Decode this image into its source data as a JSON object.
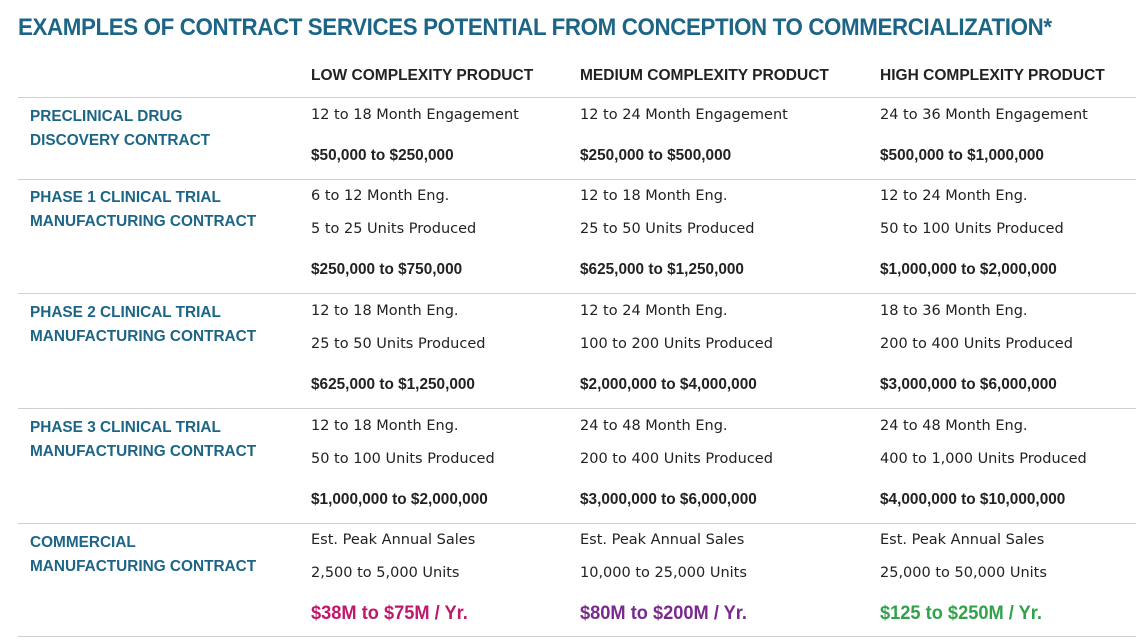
{
  "title": "EXAMPLES OF CONTRACT SERVICES POTENTIAL FROM CONCEPTION TO COMMERCIALIZATION*",
  "columns": [
    "LOW COMPLEXITY PRODUCT",
    "MEDIUM COMPLEXITY PRODUCT",
    "HIGH COMPLEXITY PRODUCT"
  ],
  "colors": {
    "heading": "#1d6586",
    "commercial_low": "#c0186a",
    "commercial_medium": "#7a2a8c",
    "commercial_high": "#30a24a"
  },
  "rows": [
    {
      "label": [
        "PRECLINICAL DRUG",
        "DISCOVERY CONTRACT"
      ],
      "cells": [
        {
          "engagement": "12 to 18 Month Engagement",
          "amount": "$50,000 to $250,000"
        },
        {
          "engagement": "12 to 24 Month Engagement",
          "amount": "$250,000 to $500,000"
        },
        {
          "engagement": "24 to 36 Month Engagement",
          "amount": "$500,000 to $1,000,000"
        }
      ]
    },
    {
      "label": [
        "PHASE 1 CLINICAL TRIAL",
        "MANUFACTURING CONTRACT"
      ],
      "cells": [
        {
          "engagement": "6 to 12 Month Eng.",
          "units": "5 to 25 Units Produced",
          "amount": "$250,000 to $750,000"
        },
        {
          "engagement": "12 to 18 Month Eng.",
          "units": "25 to 50 Units Produced",
          "amount": "$625,000 to $1,250,000"
        },
        {
          "engagement": "12 to 24 Month Eng.",
          "units": "50 to 100 Units Produced",
          "amount": "$1,000,000 to $2,000,000"
        }
      ]
    },
    {
      "label": [
        "PHASE 2 CLINICAL TRIAL",
        "MANUFACTURING CONTRACT"
      ],
      "cells": [
        {
          "engagement": "12 to 18 Month Eng.",
          "units": "25 to 50 Units Produced",
          "amount": "$625,000 to $1,250,000"
        },
        {
          "engagement": "12 to 24 Month Eng.",
          "units": "100 to 200 Units Produced",
          "amount": "$2,000,000 to $4,000,000"
        },
        {
          "engagement": "18 to 36 Month Eng.",
          "units": "200 to 400 Units Produced",
          "amount": "$3,000,000 to $6,000,000"
        }
      ]
    },
    {
      "label": [
        "PHASE 3 CLINICAL TRIAL",
        "MANUFACTURING CONTRACT"
      ],
      "cells": [
        {
          "engagement": "12 to 18 Month Eng.",
          "units": "50 to 100 Units Produced",
          "amount": "$1,000,000 to $2,000,000"
        },
        {
          "engagement": "24 to 48 Month Eng.",
          "units": "200 to 400 Units Produced",
          "amount": "$3,000,000 to $6,000,000"
        },
        {
          "engagement": "24 to 48 Month Eng.",
          "units": "400 to 1,000 Units Produced",
          "amount": "$4,000,000 to $10,000,000"
        }
      ]
    },
    {
      "label": [
        "COMMERCIAL",
        "MANUFACTURING CONTRACT"
      ],
      "cells": [
        {
          "engagement": "Est. Peak Annual Sales",
          "units": "2,500 to 5,000 Units",
          "amount": "$38M to $75M / Yr."
        },
        {
          "engagement": "Est. Peak Annual Sales",
          "units": "10,000 to 25,000 Units",
          "amount": "$80M to $200M / Yr."
        },
        {
          "engagement": "Est. Peak Annual Sales",
          "units": "25,000 to 50,000 Units",
          "amount": "$125 to $250M / Yr."
        }
      ]
    }
  ]
}
